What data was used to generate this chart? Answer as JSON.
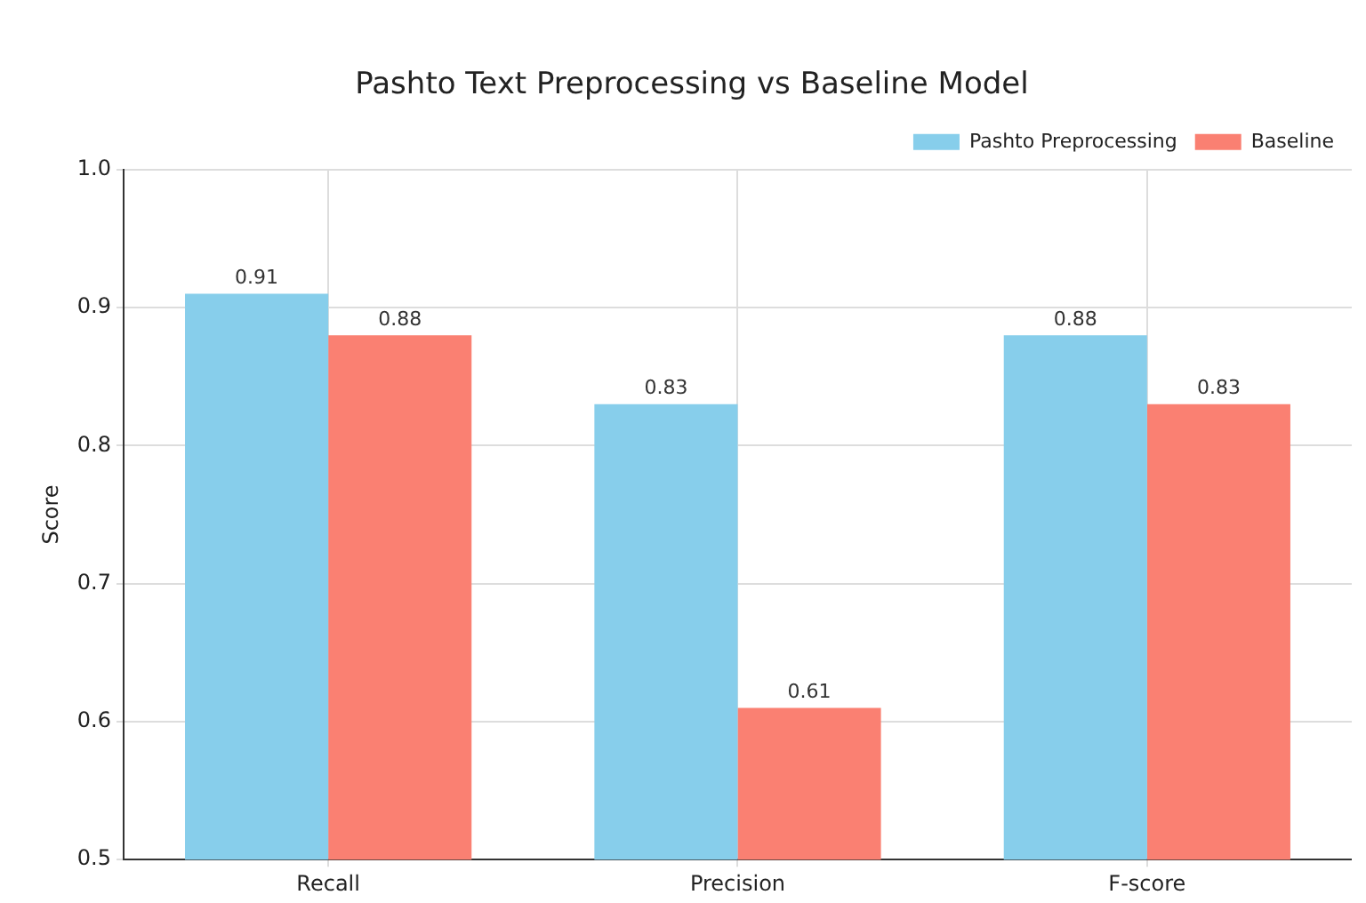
{
  "chart_data": {
    "type": "bar",
    "title": "Pashto Text Preprocessing vs Baseline Model",
    "ylabel": "Score",
    "categories": [
      "Recall",
      "Precision",
      "F-score"
    ],
    "series": [
      {
        "name": "Pashto Preprocessing",
        "color": "#87ceeb",
        "values": [
          0.91,
          0.83,
          0.88
        ]
      },
      {
        "name": "Baseline",
        "color": "#fa8072",
        "values": [
          0.88,
          0.61,
          0.83
        ]
      }
    ],
    "ylim": [
      0.5,
      1.0
    ],
    "yticks": [
      0.5,
      0.6,
      0.7,
      0.8,
      0.9,
      {
        "value": 1.0,
        "label": "1.0"
      }
    ],
    "grid": true,
    "legend": "top right",
    "data_labels": true
  }
}
